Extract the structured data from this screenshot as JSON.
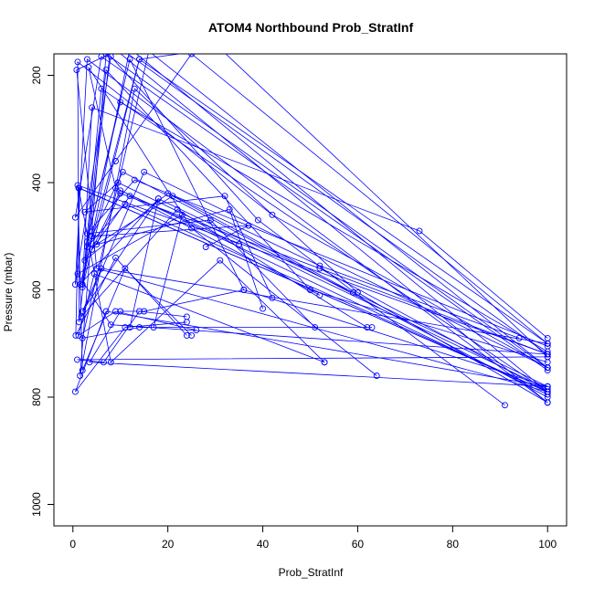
{
  "chart_data": {
    "type": "line",
    "title": "ATOM4 Northbound Prob_StratInf",
    "xlabel": "Prob_StratInf",
    "ylabel": "Pressure (mbar)",
    "xlim": [
      -4,
      104
    ],
    "ylim": [
      1040,
      160
    ],
    "y_reversed": true,
    "x_ticks": [
      0,
      20,
      40,
      60,
      80,
      100
    ],
    "y_ticks": [
      200,
      400,
      600,
      800,
      1000
    ],
    "color": "#0000ff",
    "marker": "open-circle",
    "grid": false,
    "legend": "none",
    "series": [
      {
        "x": [
          100,
          10,
          0.8,
          5,
          100,
          52
        ],
        "y": [
          720,
          150,
          190,
          560,
          790,
          560
        ]
      },
      {
        "x": [
          100,
          25,
          9,
          0.5,
          6,
          100
        ],
        "y": [
          700,
          160,
          360,
          465,
          165,
          750
        ]
      },
      {
        "x": [
          100,
          31,
          14,
          1.5,
          18,
          100
        ],
        "y": [
          725,
          150,
          170,
          590,
          430,
          780
        ]
      },
      {
        "x": [
          100,
          73,
          4,
          2,
          12,
          100
        ],
        "y": [
          690,
          490,
          260,
          590,
          150,
          790
        ]
      },
      {
        "x": [
          100,
          42,
          1,
          1.3,
          8,
          100
        ],
        "y": [
          745,
          460,
          175,
          660,
          145,
          810
        ]
      },
      {
        "x": [
          100,
          60,
          13,
          1.5,
          7,
          100
        ],
        "y": [
          810,
          605,
          225,
          760,
          160,
          745
        ]
      },
      {
        "x": [
          100,
          50,
          7,
          2,
          14,
          100
        ],
        "y": [
          735,
          600,
          190,
          595,
          170,
          700
        ]
      },
      {
        "x": [
          100,
          36,
          12,
          3,
          10,
          100
        ],
        "y": [
          780,
          600,
          170,
          510,
          250,
          715
        ]
      },
      {
        "x": [
          91,
          39,
          8,
          0.5,
          3,
          100
        ],
        "y": [
          815,
          470,
          165,
          590,
          170,
          810
        ]
      },
      {
        "x": [
          94,
          52,
          20,
          2.5,
          6,
          100
        ],
        "y": [
          690,
          555,
          420,
          545,
          225,
          790
        ]
      },
      {
        "x": [
          64,
          25,
          3.3,
          9,
          100
        ],
        "y": [
          760,
          485,
          185,
          410,
          795
        ]
      },
      {
        "x": [
          42,
          32,
          2.5,
          9.5,
          100
        ],
        "y": [
          615,
          425,
          455,
          400,
          785
        ]
      },
      {
        "x": [
          28,
          37,
          4,
          10.5,
          100
        ],
        "y": [
          520,
          480,
          500,
          380,
          800
        ]
      },
      {
        "x": [
          40,
          33,
          3,
          11,
          100
        ],
        "y": [
          635,
          450,
          520,
          440,
          790
        ]
      },
      {
        "x": [
          59,
          21,
          5,
          10,
          100
        ],
        "y": [
          605,
          425,
          515,
          420,
          720
        ]
      },
      {
        "x": [
          35,
          10,
          4,
          12,
          52
        ],
        "y": [
          515,
          415,
          525,
          425,
          610
        ]
      },
      {
        "x": [
          62,
          22,
          1.8,
          15,
          100
        ],
        "y": [
          670,
          450,
          650,
          380,
          745
        ]
      },
      {
        "x": [
          51,
          29,
          3,
          13,
          100
        ],
        "y": [
          670,
          470,
          495,
          395,
          705
        ]
      },
      {
        "x": [
          12,
          18,
          2,
          6,
          100
        ],
        "y": [
          670,
          430,
          640,
          560,
          700
        ]
      },
      {
        "x": [
          17,
          23,
          1,
          8,
          100
        ],
        "y": [
          670,
          460,
          570,
          665,
          720
        ]
      },
      {
        "x": [
          53,
          31,
          8,
          1.2,
          100
        ],
        "y": [
          735,
          545,
          735,
          410,
          790
        ]
      },
      {
        "x": [
          24,
          9,
          0.6,
          1.3,
          100
        ],
        "y": [
          685,
          540,
          685,
          410,
          790
        ]
      },
      {
        "x": [
          25,
          11,
          2,
          1,
          100
        ],
        "y": [
          685,
          560,
          750,
          405,
          720
        ]
      },
      {
        "x": [
          24,
          14,
          6.5,
          0.9,
          100
        ],
        "y": [
          650,
          640,
          735,
          730,
          725
        ]
      },
      {
        "x": [
          36,
          15,
          10,
          3.5,
          100
        ],
        "y": [
          600,
          640,
          640,
          735,
          780
        ]
      },
      {
        "x": [
          26,
          9,
          1.2,
          4.5,
          53
        ],
        "y": [
          675,
          640,
          685,
          570,
          735
        ]
      },
      {
        "x": [
          24,
          11,
          0.5,
          7,
          100
        ],
        "y": [
          660,
          670,
          790,
          640,
          780
        ]
      },
      {
        "x": [
          63,
          14,
          2,
          16,
          100
        ],
        "y": [
          670,
          670,
          690,
          155,
          745
        ]
      }
    ]
  }
}
